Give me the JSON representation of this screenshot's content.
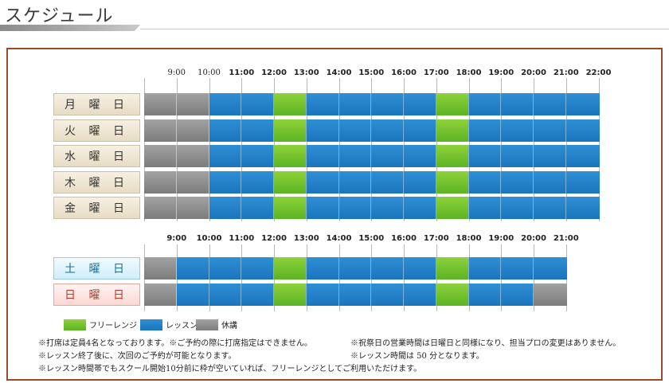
{
  "title": "スケジュール",
  "colors": {
    "lesson": "#1a75bd",
    "free": "#5cb324",
    "closed": "#7c7c7c"
  },
  "weekday_times": [
    "9:00",
    "10:00",
    "11:00",
    "12:00",
    "13:00",
    "14:00",
    "15:00",
    "16:00",
    "17:00",
    "18:00",
    "19:00",
    "20:00",
    "21:00",
    "22:00"
  ],
  "weekend_times": [
    "9:00",
    "10:00",
    "11:00",
    "12:00",
    "13:00",
    "14:00",
    "15:00",
    "16:00",
    "17:00",
    "18:00",
    "19:00",
    "20:00",
    "21:00"
  ],
  "weekdays": [
    {
      "label": "月 曜 日",
      "slots": [
        "closed",
        "closed",
        "lesson",
        "lesson",
        "free",
        "lesson",
        "lesson",
        "lesson",
        "lesson",
        "free",
        "lesson",
        "lesson",
        "lesson",
        "lesson"
      ]
    },
    {
      "label": "火 曜 日",
      "slots": [
        "closed",
        "closed",
        "lesson",
        "lesson",
        "free",
        "lesson",
        "lesson",
        "lesson",
        "lesson",
        "free",
        "lesson",
        "lesson",
        "lesson",
        "lesson"
      ]
    },
    {
      "label": "水 曜 日",
      "slots": [
        "closed",
        "closed",
        "lesson",
        "lesson",
        "free",
        "lesson",
        "lesson",
        "lesson",
        "lesson",
        "free",
        "lesson",
        "lesson",
        "lesson",
        "lesson"
      ]
    },
    {
      "label": "木 曜 日",
      "slots": [
        "closed",
        "closed",
        "lesson",
        "lesson",
        "free",
        "lesson",
        "lesson",
        "lesson",
        "lesson",
        "free",
        "lesson",
        "lesson",
        "lesson",
        "lesson"
      ]
    },
    {
      "label": "金 曜 日",
      "slots": [
        "closed",
        "closed",
        "lesson",
        "lesson",
        "free",
        "lesson",
        "lesson",
        "lesson",
        "lesson",
        "free",
        "lesson",
        "lesson",
        "lesson",
        "lesson"
      ]
    }
  ],
  "weekend": [
    {
      "label": "土 曜 日",
      "slots": [
        "closed",
        "lesson",
        "lesson",
        "lesson",
        "free",
        "lesson",
        "lesson",
        "lesson",
        "lesson",
        "free",
        "lesson",
        "lesson",
        "lesson"
      ]
    },
    {
      "label": "日 曜 日",
      "slots": [
        "closed",
        "lesson",
        "lesson",
        "lesson",
        "free",
        "lesson",
        "lesson",
        "lesson",
        "lesson",
        "free",
        "lesson",
        "lesson",
        "closed"
      ]
    }
  ],
  "legend": {
    "free": "フリーレンジ",
    "lesson": "レッスン",
    "closed": "休講"
  },
  "notes": {
    "n1": "※打席は定員4名となっております。※ご予約の際に打席指定はできません。",
    "n2": "※レッスン終了後に、次回のご予約が可能となります。",
    "n3": "※レッスン時間帯でもスクール開始10分前に枠が空いていれば、フリーレンジとしてご利用いただけます。",
    "n4": "※祝祭日の営業時間は日曜日と同様になり、担当プロの変更はありません。",
    "n5": "※レッスン時間は 50 分となります。"
  }
}
